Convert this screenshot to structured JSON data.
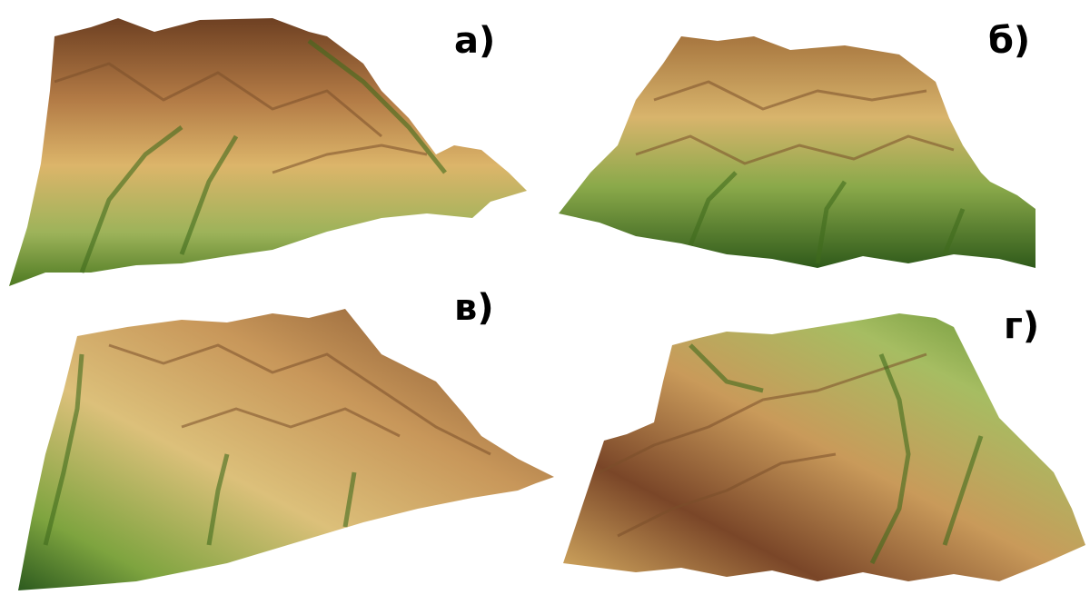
{
  "panels": [
    {
      "label": "а)"
    },
    {
      "label": "б)"
    },
    {
      "label": "в)"
    },
    {
      "label": "г)"
    }
  ]
}
